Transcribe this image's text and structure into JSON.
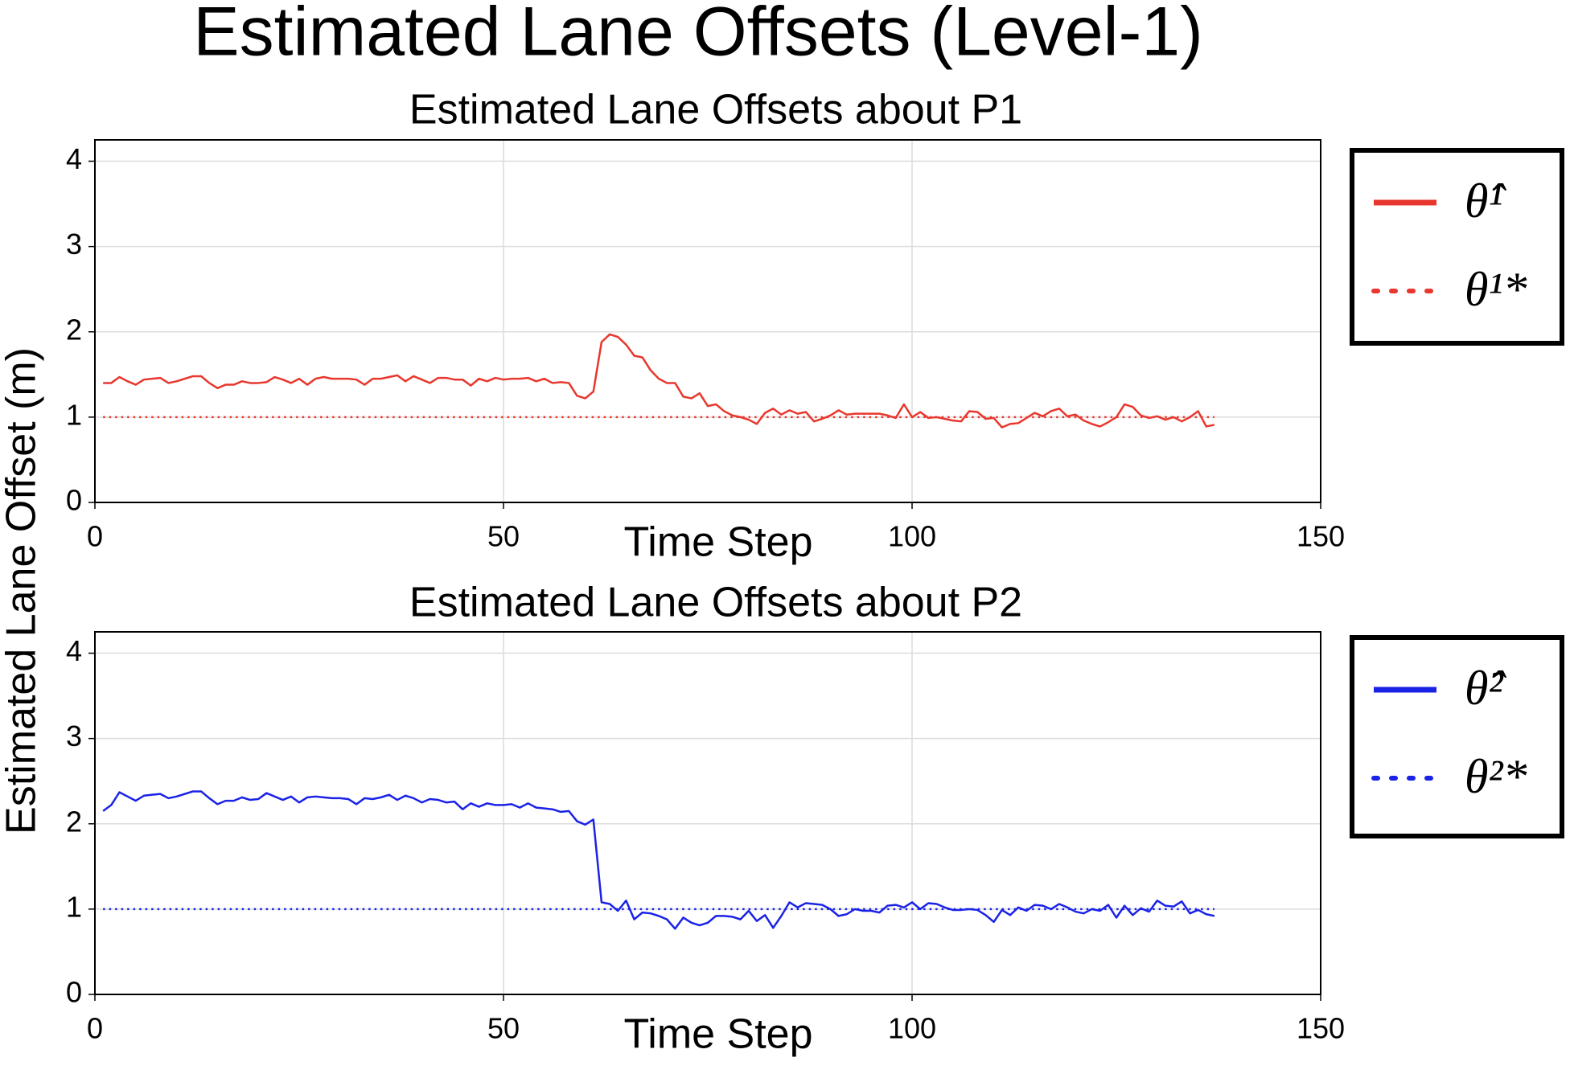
{
  "title": "Estimated Lane Offsets (Level-1)",
  "ylabel": "Estimated Lane Offset (m)",
  "chart_data": [
    {
      "type": "line",
      "title": "Estimated Lane Offsets about P1",
      "xlabel": "Time Step",
      "xlim": [
        0,
        150
      ],
      "xticks": [
        0,
        50,
        100,
        150
      ],
      "ylim": [
        0,
        4.25
      ],
      "yticks": [
        0,
        1,
        2,
        3,
        4
      ],
      "grid": true,
      "legend": "outside right",
      "x": [
        1,
        2,
        3,
        4,
        5,
        6,
        7,
        8,
        9,
        10,
        11,
        12,
        13,
        14,
        15,
        16,
        17,
        18,
        19,
        20,
        21,
        22,
        23,
        24,
        25,
        26,
        27,
        28,
        29,
        30,
        31,
        32,
        33,
        34,
        35,
        36,
        37,
        38,
        39,
        40,
        41,
        42,
        43,
        44,
        45,
        46,
        47,
        48,
        49,
        50,
        51,
        52,
        53,
        54,
        55,
        56,
        57,
        58,
        59,
        60,
        61,
        62,
        63,
        64,
        65,
        66,
        67,
        68,
        69,
        70,
        71,
        72,
        73,
        74,
        75,
        76,
        77,
        78,
        79,
        80,
        81,
        82,
        83,
        84,
        85,
        86,
        87,
        88,
        89,
        90,
        91,
        92,
        93,
        94,
        95,
        96,
        97,
        98,
        99,
        100,
        101,
        102,
        103,
        104,
        105,
        106,
        107,
        108,
        109,
        110,
        111,
        112,
        113,
        114,
        115,
        116,
        117,
        118,
        119,
        120,
        121,
        122,
        123,
        124,
        125,
        126,
        127,
        128,
        129,
        130,
        131,
        132,
        133,
        134,
        135,
        136,
        137
      ],
      "series": [
        {
          "name": "θ̂¹",
          "color": "#e8372e",
          "style": "solid",
          "values": [
            1.4,
            1.4,
            1.47,
            1.42,
            1.38,
            1.44,
            1.45,
            1.46,
            1.4,
            1.42,
            1.45,
            1.48,
            1.48,
            1.4,
            1.34,
            1.38,
            1.38,
            1.42,
            1.4,
            1.4,
            1.41,
            1.47,
            1.44,
            1.4,
            1.45,
            1.38,
            1.45,
            1.47,
            1.45,
            1.45,
            1.45,
            1.44,
            1.38,
            1.45,
            1.45,
            1.47,
            1.49,
            1.42,
            1.48,
            1.44,
            1.4,
            1.46,
            1.46,
            1.44,
            1.44,
            1.37,
            1.45,
            1.42,
            1.46,
            1.44,
            1.45,
            1.45,
            1.46,
            1.42,
            1.45,
            1.4,
            1.41,
            1.4,
            1.25,
            1.22,
            1.3,
            1.88,
            1.97,
            1.94,
            1.85,
            1.72,
            1.7,
            1.55,
            1.45,
            1.4,
            1.4,
            1.24,
            1.22,
            1.28,
            1.13,
            1.15,
            1.07,
            1.02,
            1.0,
            0.97,
            0.92,
            1.05,
            1.1,
            1.03,
            1.08,
            1.04,
            1.06,
            0.95,
            0.98,
            1.02,
            1.08,
            1.03,
            1.04,
            1.04,
            1.04,
            1.04,
            1.02,
            0.99,
            1.15,
            1.0,
            1.06,
            0.99,
            1.0,
            0.98,
            0.96,
            0.95,
            1.07,
            1.06,
            0.98,
            0.99,
            0.88,
            0.92,
            0.93,
            0.99,
            1.05,
            1.01,
            1.07,
            1.1,
            1.01,
            1.03,
            0.96,
            0.92,
            0.89,
            0.94,
            1.0,
            1.15,
            1.12,
            1.02,
            0.99,
            1.01,
            0.97,
            1.0,
            0.95,
            1.0,
            1.07,
            0.89,
            0.91
          ]
        },
        {
          "name": "θ¹*",
          "color": "#e8372e",
          "style": "dotted",
          "x": [
            1,
            137
          ],
          "values": [
            1,
            1
          ]
        }
      ]
    },
    {
      "type": "line",
      "title": "Estimated Lane Offsets about P2",
      "xlabel": "Time Step",
      "xlim": [
        0,
        150
      ],
      "xticks": [
        0,
        50,
        100,
        150
      ],
      "ylim": [
        0,
        4.25
      ],
      "yticks": [
        0,
        1,
        2,
        3,
        4
      ],
      "grid": true,
      "legend": "outside right",
      "x": [
        1,
        2,
        3,
        4,
        5,
        6,
        7,
        8,
        9,
        10,
        11,
        12,
        13,
        14,
        15,
        16,
        17,
        18,
        19,
        20,
        21,
        22,
        23,
        24,
        25,
        26,
        27,
        28,
        29,
        30,
        31,
        32,
        33,
        34,
        35,
        36,
        37,
        38,
        39,
        40,
        41,
        42,
        43,
        44,
        45,
        46,
        47,
        48,
        49,
        50,
        51,
        52,
        53,
        54,
        55,
        56,
        57,
        58,
        59,
        60,
        61,
        62,
        63,
        64,
        65,
        66,
        67,
        68,
        69,
        70,
        71,
        72,
        73,
        74,
        75,
        76,
        77,
        78,
        79,
        80,
        81,
        82,
        83,
        84,
        85,
        86,
        87,
        88,
        89,
        90,
        91,
        92,
        93,
        94,
        95,
        96,
        97,
        98,
        99,
        100,
        101,
        102,
        103,
        104,
        105,
        106,
        107,
        108,
        109,
        110,
        111,
        112,
        113,
        114,
        115,
        116,
        117,
        118,
        119,
        120,
        121,
        122,
        123,
        124,
        125,
        126,
        127,
        128,
        129,
        130,
        131,
        132,
        133,
        134,
        135,
        136,
        137
      ],
      "series": [
        {
          "name": "θ̂²",
          "color": "#1a22e6",
          "style": "solid",
          "values": [
            2.15,
            2.22,
            2.37,
            2.32,
            2.27,
            2.33,
            2.34,
            2.35,
            2.3,
            2.32,
            2.35,
            2.38,
            2.38,
            2.3,
            2.23,
            2.27,
            2.27,
            2.31,
            2.28,
            2.29,
            2.36,
            2.32,
            2.28,
            2.32,
            2.25,
            2.31,
            2.32,
            2.31,
            2.3,
            2.3,
            2.29,
            2.23,
            2.3,
            2.29,
            2.31,
            2.34,
            2.28,
            2.33,
            2.3,
            2.25,
            2.29,
            2.28,
            2.25,
            2.26,
            2.17,
            2.24,
            2.2,
            2.24,
            2.22,
            2.22,
            2.23,
            2.19,
            2.24,
            2.19,
            2.18,
            2.17,
            2.14,
            2.15,
            2.03,
            1.99,
            2.05,
            1.08,
            1.06,
            0.98,
            1.1,
            0.88,
            0.96,
            0.95,
            0.92,
            0.88,
            0.77,
            0.9,
            0.84,
            0.81,
            0.84,
            0.92,
            0.92,
            0.91,
            0.88,
            0.98,
            0.86,
            0.93,
            0.78,
            0.92,
            1.08,
            1.02,
            1.07,
            1.06,
            1.05,
            1.0,
            0.92,
            0.94,
            1.0,
            0.98,
            0.98,
            0.96,
            1.04,
            1.05,
            1.02,
            1.08,
            1.0,
            1.07,
            1.06,
            1.02,
            0.99,
            0.99,
            1.0,
            0.99,
            0.93,
            0.85,
            0.99,
            0.93,
            1.02,
            0.98,
            1.05,
            1.04,
            1.0,
            1.06,
            1.02,
            0.97,
            0.95,
            1.0,
            0.98,
            1.05,
            0.9,
            1.04,
            0.93,
            1.01,
            0.97,
            1.1,
            1.04,
            1.03,
            1.09,
            0.95,
            0.99,
            0.94,
            0.92
          ]
        },
        {
          "name": "θ²*",
          "color": "#1a22e6",
          "style": "dotted",
          "x": [
            1,
            137
          ],
          "values": [
            1,
            1
          ]
        }
      ]
    }
  ]
}
